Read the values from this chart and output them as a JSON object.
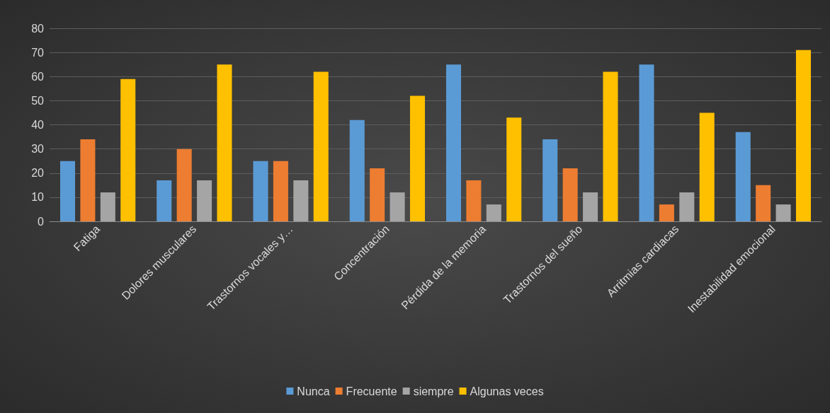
{
  "chart_data": {
    "type": "bar",
    "categories": [
      "Fatiga",
      "Dolores musculares",
      "Trastornos vocales y…",
      "Concentración",
      "Pérdida de la memoria",
      "Trastornos del sueño",
      "Arritmias cardiacas",
      "Inestabilidad emocional"
    ],
    "series": [
      {
        "name": "Nunca",
        "color": "#5b9bd5",
        "values": [
          25,
          17,
          25,
          42,
          65,
          34,
          65,
          37
        ]
      },
      {
        "name": "Frecuente",
        "color": "#ed7d31",
        "values": [
          34,
          30,
          25,
          22,
          17,
          22,
          7,
          15
        ]
      },
      {
        "name": "siempre",
        "color": "#a5a5a5",
        "values": [
          12,
          17,
          17,
          12,
          7,
          12,
          12,
          7
        ]
      },
      {
        "name": "Algunas veces",
        "color": "#ffc000",
        "values": [
          59,
          65,
          62,
          52,
          43,
          62,
          45,
          71
        ]
      }
    ],
    "ylim": [
      0,
      80
    ],
    "yticks": [
      0,
      10,
      20,
      30,
      40,
      50,
      60,
      70,
      80
    ],
    "grid": "y",
    "legend": "bottom"
  }
}
